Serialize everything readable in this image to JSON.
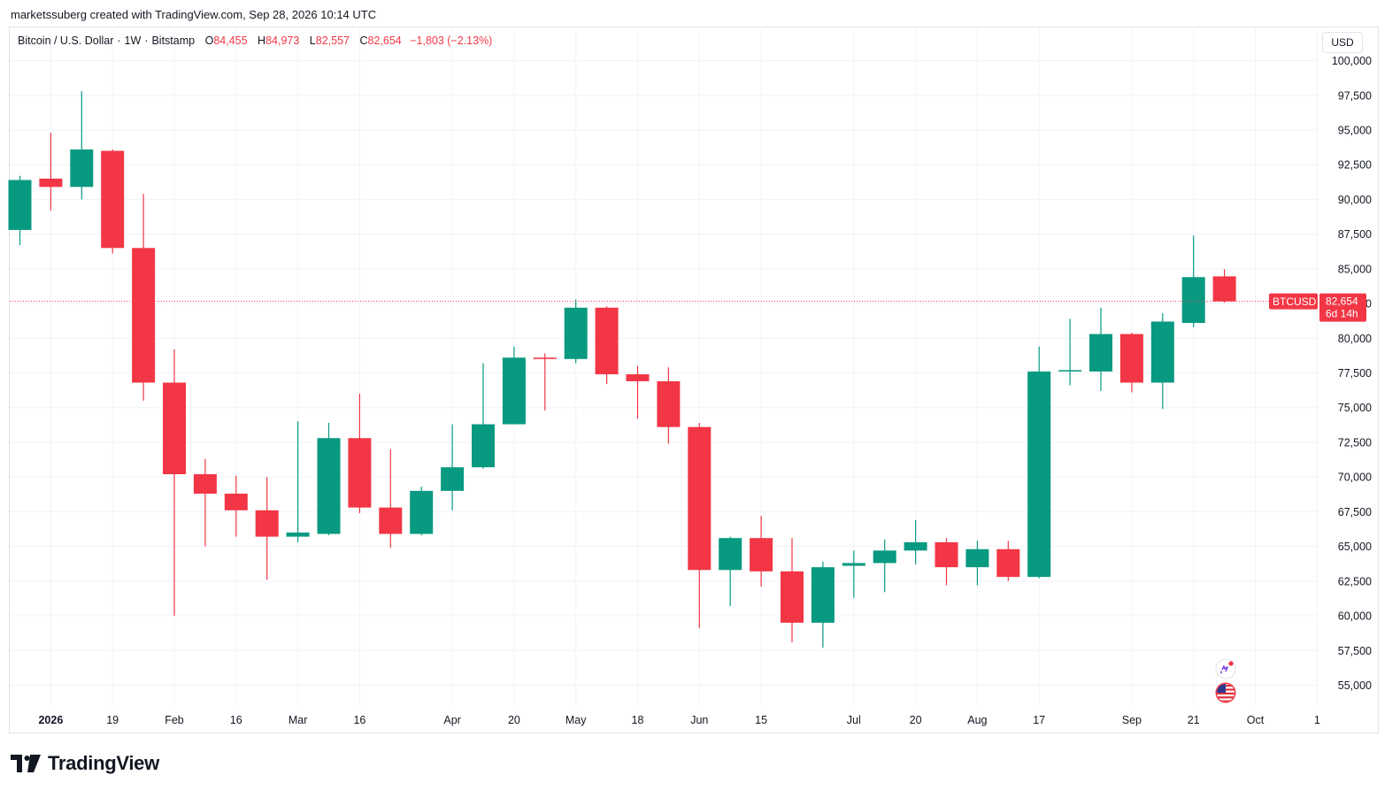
{
  "header": {
    "author": "marketssuberg",
    "created_text": "created with TradingView.com, Sep 28, 2026 10:14 UTC"
  },
  "legend": {
    "symbol": "Bitcoin / U.S. Dollar",
    "interval": "1W",
    "exchange": "Bitstamp",
    "open_label": "O",
    "open": "84,455",
    "high_label": "H",
    "high": "84,973",
    "low_label": "L",
    "low": "82,557",
    "close_label": "C",
    "close": "82,654",
    "change": "−1,803 (−2.13%)"
  },
  "currency": "USD",
  "price_badge": {
    "symbol": "BTCUSD",
    "price": "82,654",
    "countdown": "6d 14h"
  },
  "footer": {
    "brand": "TradingView"
  },
  "colors": {
    "up": "#089981",
    "down": "#f23645",
    "grid": "#f0f3fa",
    "axis_text": "#131722"
  },
  "icons": [
    "ai-assistant-icon",
    "us-flag-icon"
  ],
  "chart_data": {
    "type": "candlestick",
    "title": "Bitcoin / U.S. Dollar · 1W · Bitstamp",
    "ylim": [
      53500,
      101500
    ],
    "y_ticks": [
      55000,
      57500,
      60000,
      62500,
      65000,
      67500,
      70000,
      72500,
      75000,
      77500,
      80000,
      82500,
      85000,
      87500,
      90000,
      92500,
      95000,
      97500,
      100000
    ],
    "y_tick_labels": [
      "55,000",
      "57,500",
      "60,000",
      "62,500",
      "65,000",
      "67,500",
      "70,000",
      "72,500",
      "75,000",
      "77,500",
      "80,000",
      "82,500",
      "85,000",
      "87,500",
      "90,000",
      "92,500",
      "95,000",
      "97,500",
      "100,000"
    ],
    "x_labels": [
      {
        "week": 1,
        "label": "2026",
        "bold": true
      },
      {
        "week": 3,
        "label": "19"
      },
      {
        "week": 5,
        "label": "Feb"
      },
      {
        "week": 7,
        "label": "16"
      },
      {
        "week": 9,
        "label": "Mar"
      },
      {
        "week": 11,
        "label": "16"
      },
      {
        "week": 14,
        "label": "Apr"
      },
      {
        "week": 16,
        "label": "20"
      },
      {
        "week": 18,
        "label": "May"
      },
      {
        "week": 20,
        "label": "18"
      },
      {
        "week": 22,
        "label": "Jun"
      },
      {
        "week": 24,
        "label": "15"
      },
      {
        "week": 27,
        "label": "Jul"
      },
      {
        "week": 29,
        "label": "20"
      },
      {
        "week": 31,
        "label": "Aug"
      },
      {
        "week": 33,
        "label": "17"
      },
      {
        "week": 36,
        "label": "Sep"
      },
      {
        "week": 38,
        "label": "21"
      },
      {
        "week": 40,
        "label": "Oct"
      },
      {
        "week": 42,
        "label": "1"
      }
    ],
    "candles": [
      {
        "o": 87800,
        "h": 91700,
        "l": 86700,
        "c": 91400
      },
      {
        "o": 91500,
        "h": 94800,
        "l": 89200,
        "c": 90900
      },
      {
        "o": 90900,
        "h": 97800,
        "l": 90000,
        "c": 93600
      },
      {
        "o": 93500,
        "h": 93600,
        "l": 86100,
        "c": 86500
      },
      {
        "o": 86500,
        "h": 90400,
        "l": 75500,
        "c": 76800
      },
      {
        "o": 76800,
        "h": 79200,
        "l": 60000,
        "c": 70200
      },
      {
        "o": 70200,
        "h": 71300,
        "l": 65000,
        "c": 68800
      },
      {
        "o": 68800,
        "h": 70100,
        "l": 65700,
        "c": 67600
      },
      {
        "o": 67600,
        "h": 70000,
        "l": 62600,
        "c": 65700
      },
      {
        "o": 65700,
        "h": 74000,
        "l": 65300,
        "c": 66000
      },
      {
        "o": 65900,
        "h": 73900,
        "l": 65800,
        "c": 72800
      },
      {
        "o": 72800,
        "h": 76000,
        "l": 67400,
        "c": 67800
      },
      {
        "o": 67800,
        "h": 72000,
        "l": 64900,
        "c": 65900
      },
      {
        "o": 65900,
        "h": 69300,
        "l": 65800,
        "c": 69000
      },
      {
        "o": 69000,
        "h": 73800,
        "l": 67600,
        "c": 70700
      },
      {
        "o": 70700,
        "h": 78200,
        "l": 70600,
        "c": 73800
      },
      {
        "o": 73800,
        "h": 79400,
        "l": 73800,
        "c": 78600
      },
      {
        "o": 78600,
        "h": 78900,
        "l": 74800,
        "c": 78500
      },
      {
        "o": 78500,
        "h": 82800,
        "l": 78200,
        "c": 82200
      },
      {
        "o": 82200,
        "h": 82300,
        "l": 76700,
        "c": 77400
      },
      {
        "o": 77400,
        "h": 78000,
        "l": 74200,
        "c": 76900
      },
      {
        "o": 76900,
        "h": 77900,
        "l": 72400,
        "c": 73600
      },
      {
        "o": 73600,
        "h": 73900,
        "l": 59100,
        "c": 63300
      },
      {
        "o": 63300,
        "h": 65700,
        "l": 60700,
        "c": 65600
      },
      {
        "o": 65600,
        "h": 67200,
        "l": 62100,
        "c": 63200
      },
      {
        "o": 63200,
        "h": 65600,
        "l": 58100,
        "c": 59500
      },
      {
        "o": 59500,
        "h": 63900,
        "l": 57700,
        "c": 63500
      },
      {
        "o": 63600,
        "h": 64700,
        "l": 61300,
        "c": 63800
      },
      {
        "o": 63800,
        "h": 65500,
        "l": 61700,
        "c": 64700
      },
      {
        "o": 64700,
        "h": 66900,
        "l": 63700,
        "c": 65300
      },
      {
        "o": 65300,
        "h": 65600,
        "l": 62200,
        "c": 63500
      },
      {
        "o": 63500,
        "h": 65400,
        "l": 62200,
        "c": 64800
      },
      {
        "o": 64800,
        "h": 65400,
        "l": 62500,
        "c": 62800
      },
      {
        "o": 62800,
        "h": 79400,
        "l": 62700,
        "c": 77600
      },
      {
        "o": 77600,
        "h": 81400,
        "l": 76600,
        "c": 77700
      },
      {
        "o": 77600,
        "h": 82200,
        "l": 76200,
        "c": 80300
      },
      {
        "o": 80300,
        "h": 80400,
        "l": 76100,
        "c": 76800
      },
      {
        "o": 76800,
        "h": 81800,
        "l": 74900,
        "c": 81200
      },
      {
        "o": 81100,
        "h": 87400,
        "l": 80800,
        "c": 84400
      },
      {
        "o": 84455,
        "h": 84973,
        "l": 82557,
        "c": 82654
      }
    ]
  }
}
